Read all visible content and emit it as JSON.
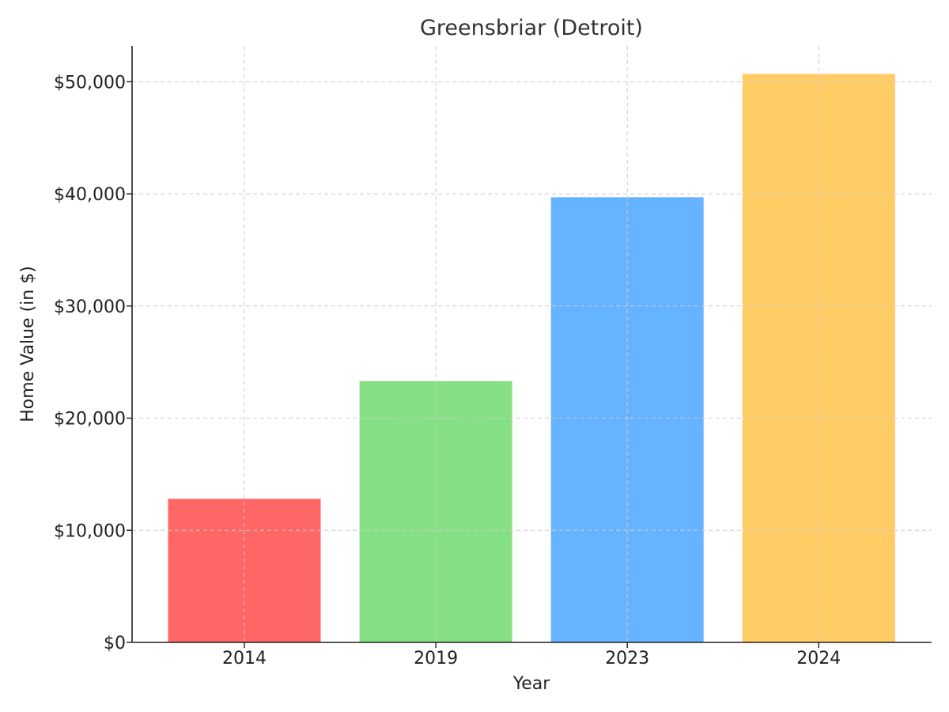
{
  "chart_data": {
    "type": "bar",
    "title": "Greensbriar (Detroit)",
    "xlabel": "Year",
    "ylabel": "Home Value (in $)",
    "categories": [
      "2014",
      "2019",
      "2023",
      "2024"
    ],
    "values": [
      12800,
      23300,
      39700,
      50700
    ],
    "colors": [
      "#ff6666",
      "#85e085",
      "#66b3ff",
      "#ffcc66"
    ],
    "ylim": [
      0,
      53200
    ],
    "yticks": [
      0,
      10000,
      20000,
      30000,
      40000,
      50000
    ],
    "ytick_labels": [
      "$0",
      "$10,000",
      "$20,000",
      "$30,000",
      "$40,000",
      "$50,000"
    ],
    "grid": true
  }
}
